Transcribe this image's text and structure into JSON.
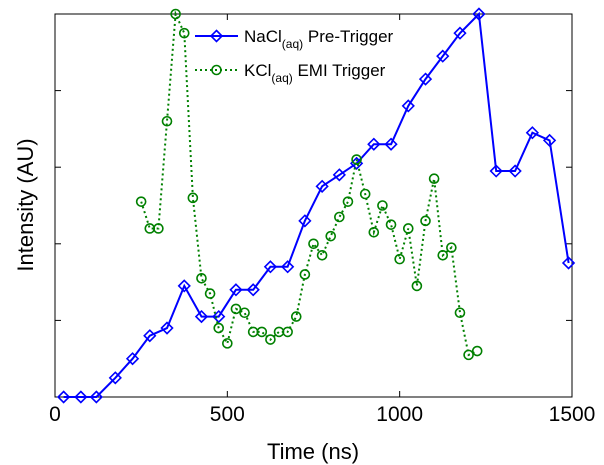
{
  "chart_data": {
    "type": "line",
    "xlabel": "Time (ns)",
    "ylabel": "Intensity (AU)",
    "xlim": [
      0,
      1500
    ],
    "xticks": [
      "0",
      "500",
      "1000",
      "1500"
    ],
    "ylim": [
      0,
      1
    ],
    "y_tick_labels_shown": false,
    "grid": false,
    "legend_position": "top-center",
    "series": [
      {
        "name": "NaCl(aq) Pre-Trigger",
        "name_main": "NaCl",
        "name_sub": "(aq)",
        "name_rest": " Pre-Trigger",
        "color": "#0000ff",
        "line_style": "solid",
        "marker": "diamond",
        "x": [
          25,
          75,
          120,
          175,
          225,
          275,
          325,
          375,
          425,
          475,
          525,
          575,
          625,
          675,
          725,
          775,
          825,
          875,
          925,
          975,
          1025,
          1075,
          1125,
          1175,
          1230,
          1280,
          1335,
          1385,
          1435,
          1490
        ],
        "y": [
          0.0,
          0.0,
          0.0,
          0.05,
          0.1,
          0.16,
          0.18,
          0.29,
          0.21,
          0.21,
          0.28,
          0.28,
          0.34,
          0.34,
          0.46,
          0.55,
          0.58,
          0.61,
          0.66,
          0.66,
          0.76,
          0.83,
          0.89,
          0.95,
          1.0,
          0.59,
          0.59,
          0.69,
          0.67,
          0.35
        ]
      },
      {
        "name": "KCl(aq) EMI Trigger",
        "name_main": "KCl",
        "name_sub": "(aq)",
        "name_rest": " EMI Trigger",
        "color": "#008000",
        "line_style": "dotted",
        "marker": "circle",
        "x": [
          250,
          275,
          300,
          325,
          350,
          375,
          400,
          425,
          450,
          475,
          500,
          525,
          550,
          575,
          600,
          625,
          650,
          675,
          700,
          725,
          750,
          775,
          800,
          825,
          850,
          875,
          900,
          925,
          950,
          975,
          1000,
          1025,
          1050,
          1075,
          1100,
          1125,
          1150,
          1175,
          1200,
          1225
        ],
        "y": [
          0.51,
          0.44,
          0.44,
          0.72,
          1.0,
          0.95,
          0.52,
          0.31,
          0.27,
          0.18,
          0.14,
          0.23,
          0.22,
          0.17,
          0.17,
          0.15,
          0.17,
          0.17,
          0.21,
          0.32,
          0.4,
          0.37,
          0.42,
          0.47,
          0.51,
          0.62,
          0.53,
          0.43,
          0.5,
          0.45,
          0.36,
          0.44,
          0.29,
          0.46,
          0.57,
          0.37,
          0.39,
          0.22,
          0.11,
          0.12
        ]
      }
    ]
  }
}
